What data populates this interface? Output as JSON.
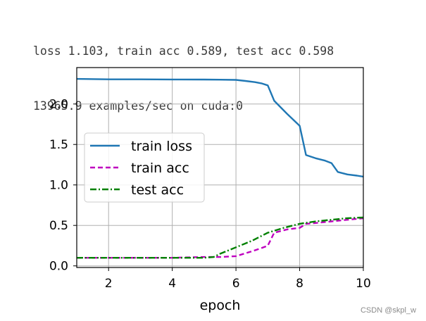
{
  "console": {
    "line1": "loss 1.103, train acc 0.589, test acc 0.598",
    "line2": "13965.9 examples/sec on cuda:0"
  },
  "watermark": "CSDN @skpl_w",
  "chart_data": {
    "type": "line",
    "title": "",
    "xlabel": "epoch",
    "ylabel": "",
    "xlim": [
      1,
      10
    ],
    "ylim": [
      -0.02,
      2.45
    ],
    "xticks": [
      2,
      4,
      6,
      8,
      10
    ],
    "yticks": [
      0.0,
      0.5,
      1.0,
      1.5,
      2.0
    ],
    "xtick_labels": [
      "2",
      "4",
      "6",
      "8",
      "10"
    ],
    "ytick_labels": [
      "0.0",
      "0.5",
      "1.0",
      "1.5",
      "2.0"
    ],
    "grid": true,
    "legend_position": "center-left",
    "series": [
      {
        "name": "train loss",
        "color": "#1f77b4",
        "style": "solid",
        "x": [
          1.0,
          2.0,
          3.0,
          4.0,
          5.0,
          5.5,
          6.0,
          6.3,
          6.6,
          6.8,
          7.0,
          7.2,
          7.6,
          8.0,
          8.2,
          8.5,
          8.8,
          9.0,
          9.2,
          9.5,
          9.8,
          10.0
        ],
        "y": [
          2.31,
          2.305,
          2.305,
          2.303,
          2.302,
          2.3,
          2.298,
          2.285,
          2.27,
          2.255,
          2.23,
          2.04,
          1.88,
          1.73,
          1.37,
          1.33,
          1.3,
          1.27,
          1.16,
          1.13,
          1.115,
          1.103
        ]
      },
      {
        "name": "train acc",
        "color": "#bf00bf",
        "style": "dashed",
        "x": [
          1.0,
          2.0,
          3.0,
          4.0,
          5.0,
          5.5,
          6.0,
          6.5,
          6.8,
          7.0,
          7.2,
          7.6,
          8.0,
          8.2,
          8.5,
          9.0,
          9.5,
          10.0
        ],
        "y": [
          0.1,
          0.1,
          0.1,
          0.1,
          0.11,
          0.11,
          0.12,
          0.18,
          0.22,
          0.25,
          0.41,
          0.45,
          0.47,
          0.52,
          0.53,
          0.55,
          0.57,
          0.589
        ]
      },
      {
        "name": "test acc",
        "color": "#008000",
        "style": "dashdot",
        "x": [
          1.0,
          2.0,
          3.0,
          4.0,
          5.0,
          5.3,
          5.5,
          6.0,
          6.5,
          7.0,
          7.5,
          8.0,
          8.5,
          9.0,
          9.5,
          10.0
        ],
        "y": [
          0.1,
          0.1,
          0.1,
          0.1,
          0.1,
          0.11,
          0.15,
          0.23,
          0.31,
          0.41,
          0.47,
          0.52,
          0.55,
          0.57,
          0.59,
          0.598
        ]
      }
    ]
  }
}
